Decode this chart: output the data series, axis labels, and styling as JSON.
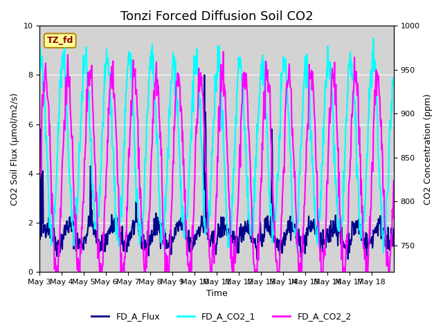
{
  "title": "Tonzi Forced Diffusion Soil CO2",
  "xlabel": "Time",
  "ylabel_left": "CO2 Soil Flux (μmol/m2/s)",
  "ylabel_right": "CO2 Concentration (ppm)",
  "ylim_left": [
    0.0,
    10.0
  ],
  "ylim_right": [
    720,
    1000
  ],
  "xtick_labels": [
    "May 3",
    "May 4",
    "May 5",
    "May 6",
    "May 7",
    "May 8",
    "May 9",
    "May 10",
    "May 11",
    "May 12",
    "May 13",
    "May 14",
    "May 15",
    "May 16",
    "May 17",
    "May 18"
  ],
  "legend_labels": [
    "FD_A_Flux",
    "FD_A_CO2_1",
    "FD_A_CO2_2"
  ],
  "flux_color": "#00008B",
  "co2_1_color": "#00FFFF",
  "co2_2_color": "#FF00FF",
  "annotation_text": "TZ_fd",
  "annotation_color": "#8B0000",
  "annotation_bg": "#FFFF99",
  "annotation_border": "#B8860B",
  "grid_color": "#FFFFFF",
  "bg_color": "#D3D3D3",
  "title_fontsize": 13,
  "label_fontsize": 9,
  "tick_fontsize": 8
}
